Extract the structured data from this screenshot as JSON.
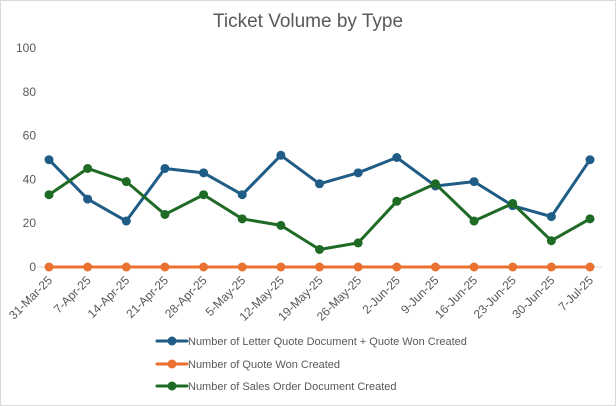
{
  "chart_data": {
    "type": "line",
    "title": "Ticket Volume by Type",
    "xlabel": "",
    "ylabel": "",
    "ylim": [
      0,
      100
    ],
    "yticks": [
      0,
      20,
      40,
      60,
      80,
      100
    ],
    "grid": false,
    "legend_position": "bottom",
    "categories": [
      "31-Mar-25",
      "7-Apr-25",
      "14-Apr-25",
      "21-Apr-25",
      "28-Apr-25",
      "5-May-25",
      "12-May-25",
      "19-May-25",
      "26-May-25",
      "2-Jun-25",
      "9-Jun-25",
      "16-Jun-25",
      "23-Jun-25",
      "30-Jun-25",
      "7-Jul-25"
    ],
    "series": [
      {
        "name": "Number of Letter Quote Document + Quote Won Created",
        "color": "#1f5c86",
        "values": [
          49,
          31,
          21,
          45,
          43,
          33,
          51,
          38,
          43,
          50,
          37,
          39,
          28,
          23,
          49
        ]
      },
      {
        "name": "Number of Quote Won Created",
        "color": "#ea7130",
        "values": [
          0,
          0,
          0,
          0,
          0,
          0,
          0,
          0,
          0,
          0,
          0,
          0,
          0,
          0,
          0
        ]
      },
      {
        "name": "Number of Sales Order Document Created",
        "color": "#1f6b25",
        "values": [
          33,
          45,
          39,
          24,
          33,
          22,
          19,
          8,
          11,
          30,
          38,
          21,
          29,
          12,
          22
        ]
      }
    ]
  }
}
